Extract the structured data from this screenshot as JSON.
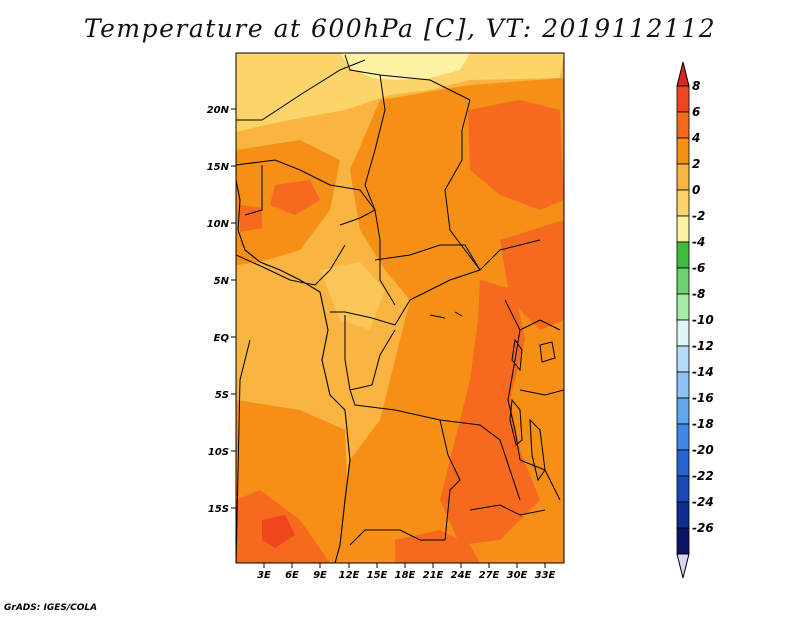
{
  "title": "Temperature at 600hPa [C], VT: 2019112112",
  "credit": "GrADS: IGES/COLA",
  "map": {
    "lat_ticks": [
      "20N",
      "15N",
      "10N",
      "5N",
      "EQ",
      "5S",
      "10S",
      "15S"
    ],
    "lon_ticks": [
      "3E",
      "6E",
      "9E",
      "12E",
      "15E",
      "18E",
      "21E",
      "24E",
      "27E",
      "30E",
      "33E"
    ]
  },
  "colorbar": {
    "levels": [
      "8",
      "6",
      "4",
      "2",
      "0",
      "-2",
      "-4",
      "-6",
      "-8",
      "-10",
      "-12",
      "-14",
      "-16",
      "-18",
      "-20",
      "-22",
      "-24",
      "-26"
    ],
    "colors": [
      "#d4281e",
      "#f0461c",
      "#f56a1e",
      "#f58f16",
      "#f9b441",
      "#fbd56a",
      "#fff2a2",
      "#3cbd3c",
      "#6ad36a",
      "#a5eca5",
      "#dff6f6",
      "#b5dcf8",
      "#8cc3f5",
      "#62a6f0",
      "#3d88e6",
      "#2366d2",
      "#174bb6",
      "#0c2e90",
      "#0a1466",
      "#d6d6f4"
    ],
    "top_color": "#d4281e",
    "bottom_color": "#d6d6f4"
  }
}
